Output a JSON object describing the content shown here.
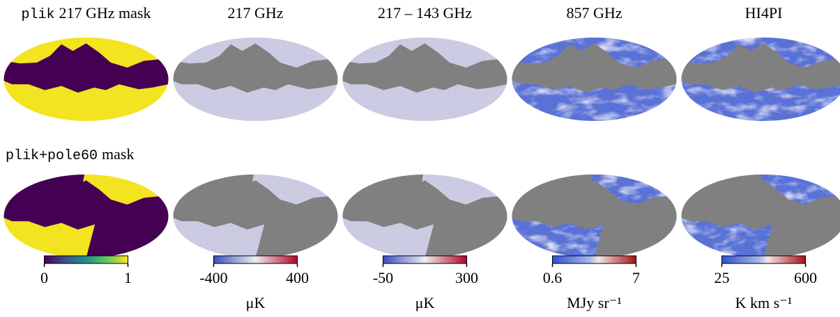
{
  "columns": [
    {
      "title": [
        {
          "text": "plik",
          "mono": true
        },
        {
          "text": "217 GHz mask"
        }
      ],
      "colormap": "viridis",
      "colorbar": {
        "ticks": [
          "0",
          "1"
        ]
      }
    },
    {
      "title": [
        {
          "text": "217 GHz"
        }
      ],
      "colormap": "coolwarm",
      "colorbar": {
        "ticks": [
          "-400",
          "400"
        ],
        "unit": "μK"
      }
    },
    {
      "title": [
        {
          "text": "217 – 143 GHz"
        }
      ],
      "colormap": "coolwarm",
      "colorbar": {
        "ticks": [
          "-50",
          "300"
        ],
        "unit": "μK"
      }
    },
    {
      "title": [
        {
          "text": "857 GHz"
        }
      ],
      "colormap": "bluered",
      "colorbar": {
        "ticks": [
          "0.6",
          "7"
        ],
        "unit": "MJy sr⁻¹"
      }
    },
    {
      "title": [
        {
          "text": "HI4PI"
        }
      ],
      "colormap": "bluered",
      "colorbar": {
        "ticks": [
          "25",
          "600"
        ],
        "unit": "K km s⁻¹"
      }
    }
  ],
  "row_labels": [
    null,
    [
      {
        "text": "plik+pole60",
        "mono": true
      },
      {
        "text": "mask"
      }
    ]
  ]
}
